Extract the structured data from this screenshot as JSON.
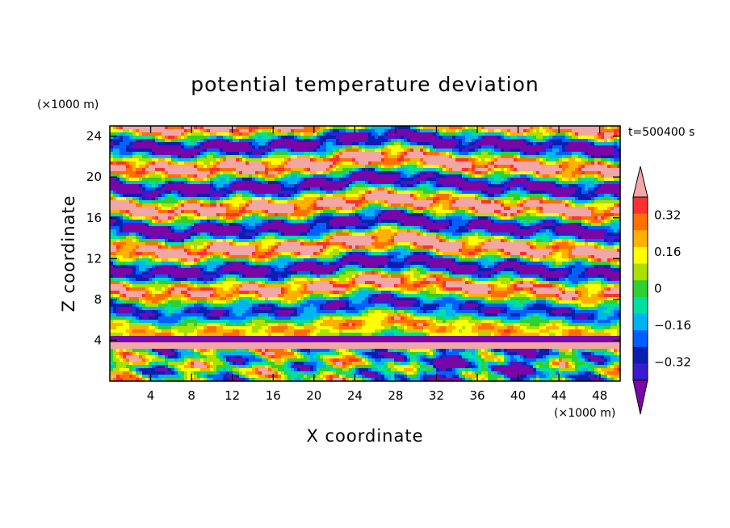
{
  "chart_data": {
    "type": "heatmap",
    "title": "potential temperature deviation",
    "time_label": "t=500400 s",
    "xlabel": "X coordinate",
    "ylabel": "Z coordinate",
    "x_unit": "(×1000 m)",
    "y_unit": "(×1000 m)",
    "xlim": [
      0,
      50
    ],
    "ylim": [
      0,
      25
    ],
    "x_ticks": [
      "4",
      "8",
      "12",
      "16",
      "20",
      "24",
      "28",
      "32",
      "36",
      "40",
      "44",
      "48"
    ],
    "y_ticks": [
      "4",
      "8",
      "12",
      "16",
      "20",
      "24"
    ],
    "colorbar": {
      "levels": [
        -0.4,
        -0.32,
        -0.24,
        -0.16,
        -0.08,
        0,
        0.08,
        0.16,
        0.24,
        0.32,
        0.4
      ],
      "tick_labels": [
        "0.32",
        "0.16",
        "0",
        "−0.16",
        "−0.32"
      ],
      "tick_values": [
        0.32,
        0.16,
        0,
        -0.16,
        -0.32
      ],
      "colors": [
        "#7a06a8",
        "#3a1bd0",
        "#0a1fb0",
        "#0060ff",
        "#00b4f0",
        "#00e0a0",
        "#30d030",
        "#a8e000",
        "#ffff00",
        "#ffb000",
        "#ff7000",
        "#ff3030",
        "#f2a6a6"
      ],
      "extend": "both"
    }
  }
}
